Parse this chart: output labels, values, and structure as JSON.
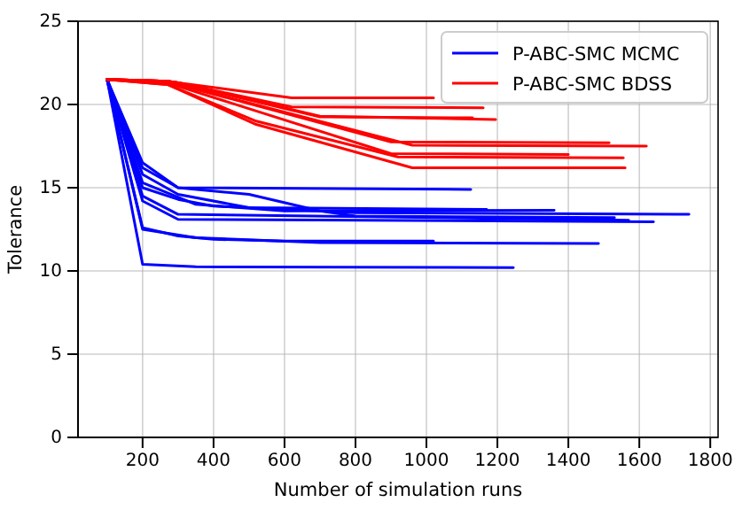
{
  "chart_data": {
    "type": "line",
    "xlabel": "Number of simulation runs",
    "ylabel": "Tolerance",
    "xlim": [
      18,
      1822
    ],
    "ylim": [
      0,
      25
    ],
    "xticks": [
      200,
      400,
      600,
      800,
      1000,
      1200,
      1400,
      1600,
      1800
    ],
    "yticks": [
      0,
      5,
      10,
      15,
      20,
      25
    ],
    "grid": true,
    "legend": "top right",
    "marker": "none",
    "line_style": "solid",
    "series": [
      {
        "name": "P-ABC-SMC MCMC",
        "color": "#0000ff",
        "x": [
          100,
          200,
          350,
          1245
        ],
        "values": [
          21.5,
          10.4,
          10.25,
          10.2
        ]
      },
      {
        "color": "#0000ff",
        "x": [
          100,
          200,
          300,
          400,
          600,
          1020
        ],
        "values": [
          21.5,
          12.6,
          12.1,
          11.9,
          11.8,
          11.8
        ]
      },
      {
        "color": "#0000ff",
        "x": [
          100,
          200,
          350,
          700,
          1485
        ],
        "values": [
          21.5,
          12.5,
          12.0,
          11.7,
          11.65
        ]
      },
      {
        "color": "#0000ff",
        "x": [
          100,
          200,
          300,
          1640
        ],
        "values": [
          21.5,
          14.2,
          13.1,
          12.95
        ]
      },
      {
        "color": "#0000ff",
        "x": [
          100,
          200,
          300,
          1570
        ],
        "values": [
          21.5,
          14.5,
          13.4,
          13.05
        ]
      },
      {
        "color": "#0000ff",
        "x": [
          100,
          200,
          300,
          400,
          800,
          1740
        ],
        "values": [
          21.5,
          15.0,
          14.3,
          13.9,
          13.5,
          13.4
        ]
      },
      {
        "color": "#0000ff",
        "x": [
          100,
          200,
          350,
          600,
          1360
        ],
        "values": [
          21.5,
          15.3,
          14.0,
          13.6,
          13.65
        ]
      },
      {
        "color": "#0000ff",
        "x": [
          100,
          200,
          300,
          500,
          1170
        ],
        "values": [
          21.5,
          15.8,
          14.6,
          13.8,
          13.7
        ]
      },
      {
        "color": "#0000ff",
        "x": [
          100,
          200,
          300,
          1125
        ],
        "values": [
          21.5,
          16.2,
          15.0,
          14.9
        ]
      },
      {
        "color": "#0000ff",
        "x": [
          100,
          200,
          300,
          500,
          700,
          800,
          1530
        ],
        "values": [
          21.5,
          16.5,
          15.0,
          14.6,
          13.6,
          13.3,
          13.2
        ]
      },
      {
        "name": "P-ABC-SMC BDSS",
        "color": "#ff0000",
        "x": [
          100,
          270,
          300,
          620,
          1020
        ],
        "values": [
          21.5,
          21.4,
          21.3,
          20.4,
          20.4
        ]
      },
      {
        "color": "#ff0000",
        "x": [
          100,
          270,
          300,
          620,
          1160
        ],
        "values": [
          21.5,
          21.4,
          21.3,
          19.85,
          19.8
        ]
      },
      {
        "color": "#ff0000",
        "x": [
          100,
          270,
          300,
          700,
          1130
        ],
        "values": [
          21.5,
          21.4,
          21.3,
          19.25,
          19.2
        ]
      },
      {
        "color": "#ff0000",
        "x": [
          100,
          270,
          300,
          700,
          1195
        ],
        "values": [
          21.5,
          21.4,
          21.3,
          19.3,
          19.1
        ]
      },
      {
        "color": "#ff0000",
        "x": [
          100,
          270,
          300,
          900,
          1515
        ],
        "values": [
          21.5,
          21.4,
          21.2,
          17.75,
          17.7
        ]
      },
      {
        "color": "#ff0000",
        "x": [
          100,
          270,
          300,
          960,
          1620
        ],
        "values": [
          21.5,
          21.4,
          21.2,
          17.55,
          17.5
        ]
      },
      {
        "color": "#ff0000",
        "x": [
          100,
          270,
          900,
          1400
        ],
        "values": [
          21.5,
          21.3,
          17.05,
          17.0
        ]
      },
      {
        "color": "#ff0000",
        "x": [
          100,
          270,
          520,
          920,
          1555
        ],
        "values": [
          21.5,
          21.2,
          19.0,
          16.85,
          16.8
        ]
      },
      {
        "color": "#ff0000",
        "x": [
          100,
          270,
          520,
          960,
          1560
        ],
        "values": [
          21.5,
          21.2,
          18.8,
          16.2,
          16.2
        ]
      }
    ]
  }
}
